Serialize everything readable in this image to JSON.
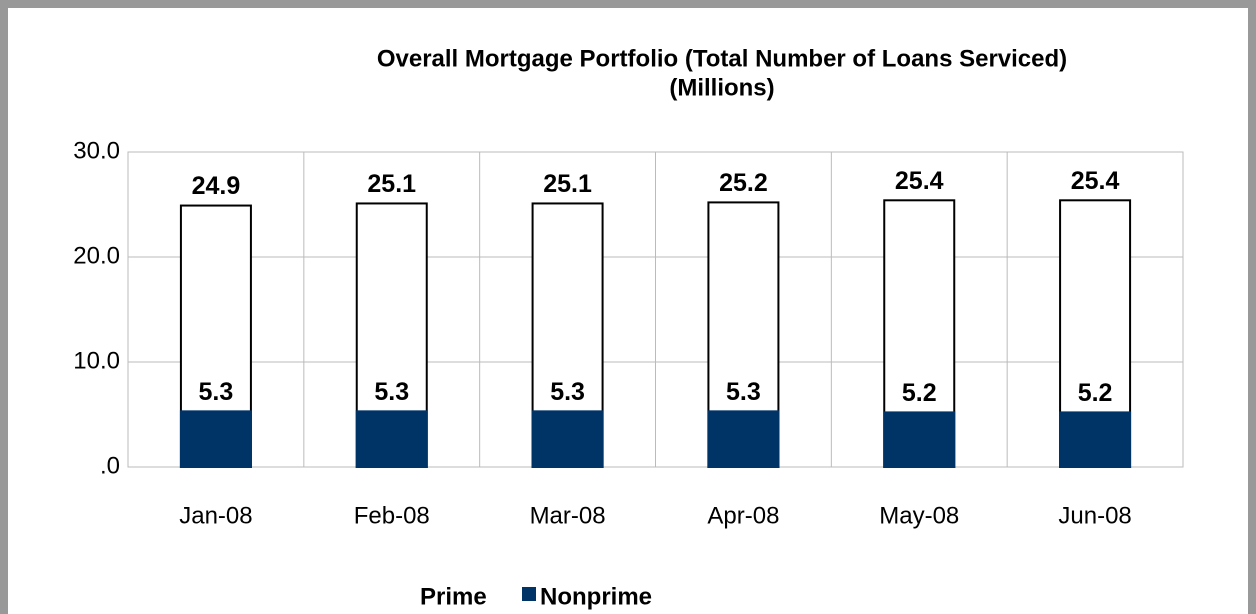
{
  "chart_data": {
    "type": "bar",
    "title": "Overall Mortgage Portfolio (Total Number of Loans Serviced)",
    "subtitle": "(Millions)",
    "categories": [
      "Jan-08",
      "Feb-08",
      "Mar-08",
      "Apr-08",
      "May-08",
      "Jun-08"
    ],
    "series": [
      {
        "name": "Prime",
        "color": "#ffffff",
        "values": [
          24.9,
          25.1,
          25.1,
          25.2,
          25.4,
          25.4
        ]
      },
      {
        "name": "Nonprime",
        "color": "#003366",
        "values": [
          5.3,
          5.3,
          5.3,
          5.3,
          5.2,
          5.2
        ]
      }
    ],
    "ylim": [
      0,
      30
    ],
    "yticks": [
      {
        "value": 0,
        "label": ".0"
      },
      {
        "value": 10,
        "label": "10.0"
      },
      {
        "value": 20,
        "label": "20.0"
      },
      {
        "value": 30,
        "label": "30.0"
      }
    ],
    "grid": true,
    "legend": "bottom"
  }
}
